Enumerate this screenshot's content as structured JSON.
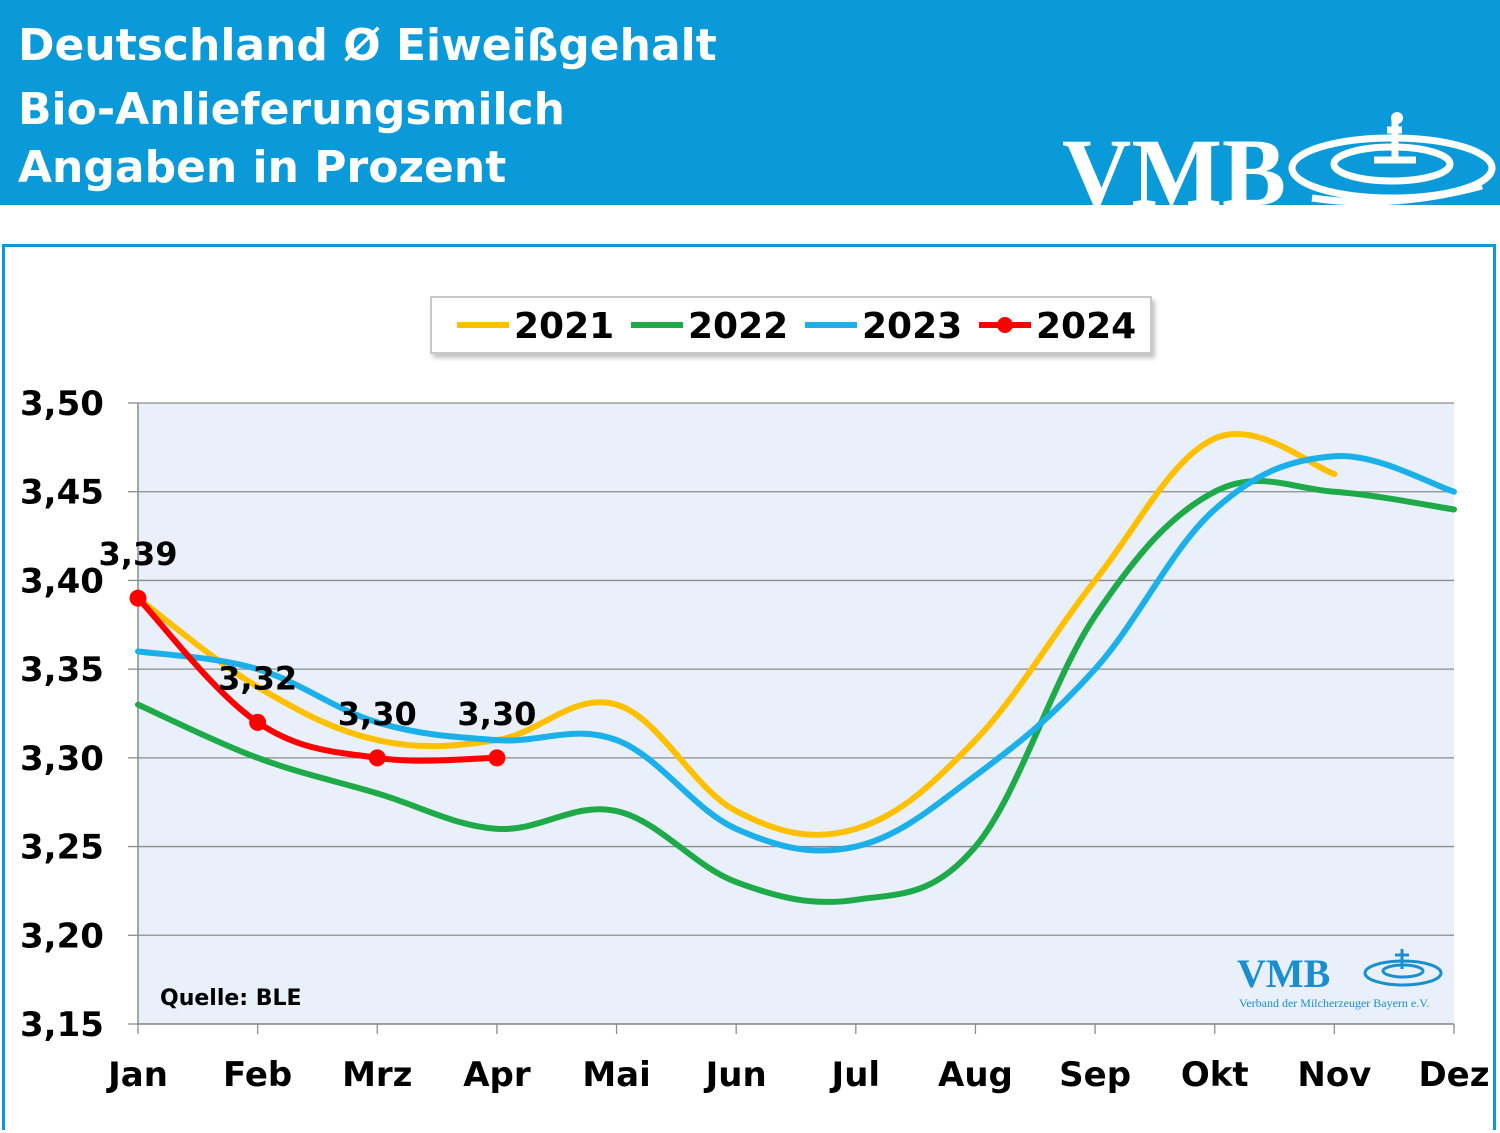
{
  "header": {
    "title_line1": "Deutschland Ø Eiweißgehalt",
    "title_line2": "Bio-Anlieferungsmilch",
    "title_line3": "Angaben in Prozent",
    "logo_text": "VMB",
    "background_color": "#0a9ad9"
  },
  "watermark": {
    "logo_text": "VMB",
    "subtitle": "Verband der Milcherzeuger Bayern e.V."
  },
  "source_note": "Quelle: BLE",
  "chart_data": {
    "type": "line",
    "categories": [
      "Jan",
      "Feb",
      "Mrz",
      "Apr",
      "Mai",
      "Jun",
      "Jul",
      "Aug",
      "Sep",
      "Okt",
      "Nov",
      "Dez"
    ],
    "ylim": [
      3.15,
      3.5
    ],
    "yticks": [
      3.15,
      3.2,
      3.25,
      3.3,
      3.35,
      3.4,
      3.45,
      3.5
    ],
    "ytick_labels": [
      "3,15",
      "3,20",
      "3,25",
      "3,30",
      "3,35",
      "3,40",
      "3,45",
      "3,50"
    ],
    "grid": true,
    "plot_background": "#e9f0fa",
    "legend_position": "top-center",
    "series": [
      {
        "name": "2021",
        "color": "#ffc000",
        "markers": false,
        "values": [
          3.39,
          3.34,
          3.31,
          3.31,
          3.33,
          3.27,
          3.26,
          3.31,
          3.4,
          3.48,
          3.46,
          null
        ]
      },
      {
        "name": "2022",
        "color": "#1faa4a",
        "markers": false,
        "values": [
          3.33,
          3.3,
          3.28,
          3.26,
          3.27,
          3.23,
          3.22,
          3.25,
          3.38,
          3.45,
          3.45,
          3.44
        ]
      },
      {
        "name": "2023",
        "color": "#1cb0ea",
        "markers": false,
        "values": [
          3.36,
          3.35,
          3.32,
          3.31,
          3.31,
          3.26,
          3.25,
          3.29,
          3.35,
          3.44,
          3.47,
          3.45
        ]
      },
      {
        "name": "2024",
        "color": "#ff0000",
        "markers": true,
        "values": [
          3.39,
          3.32,
          3.3,
          3.3,
          null,
          null,
          null,
          null,
          null,
          null,
          null,
          null
        ],
        "data_labels": [
          "3,39",
          "3,32",
          "3,30",
          "3,30"
        ]
      }
    ]
  }
}
